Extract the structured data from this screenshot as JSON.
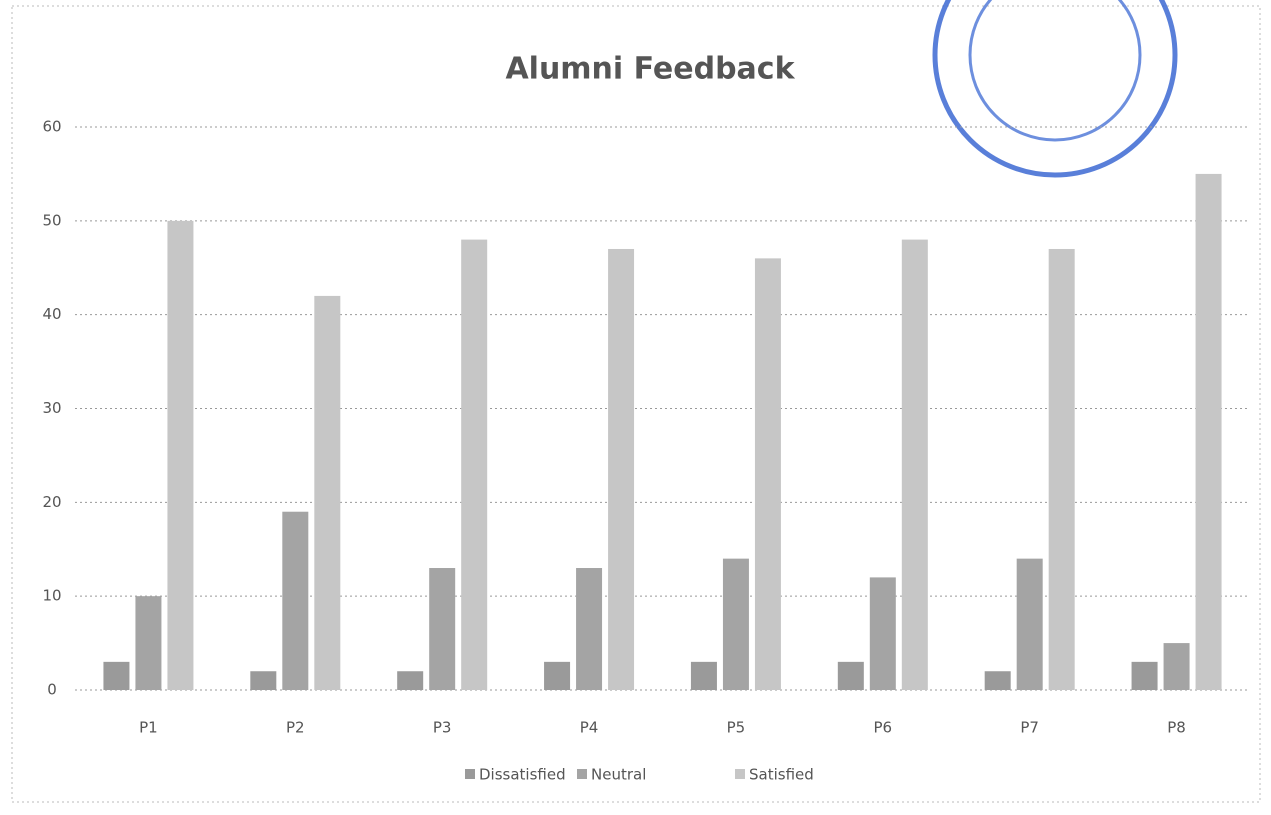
{
  "chart_data": {
    "type": "bar",
    "title": "Alumni Feedback",
    "categories": [
      "P1",
      "P2",
      "P3",
      "P4",
      "P5",
      "P6",
      "P7",
      "P8"
    ],
    "series": [
      {
        "name": "Dissatisfied",
        "color": "#9a9a9a",
        "values": [
          3,
          2,
          2,
          3,
          3,
          3,
          2,
          3
        ]
      },
      {
        "name": "Neutral",
        "color": "#a4a4a4",
        "values": [
          10,
          19,
          13,
          13,
          14,
          12,
          14,
          5
        ]
      },
      {
        "name": "Satisfied",
        "color": "#c6c6c6",
        "values": [
          50,
          42,
          48,
          47,
          46,
          48,
          47,
          55
        ]
      }
    ],
    "ylim": [
      0,
      60
    ],
    "yticks": [
      0,
      10,
      20,
      30,
      40,
      50,
      60
    ],
    "grid": true,
    "legend": "bottom"
  }
}
